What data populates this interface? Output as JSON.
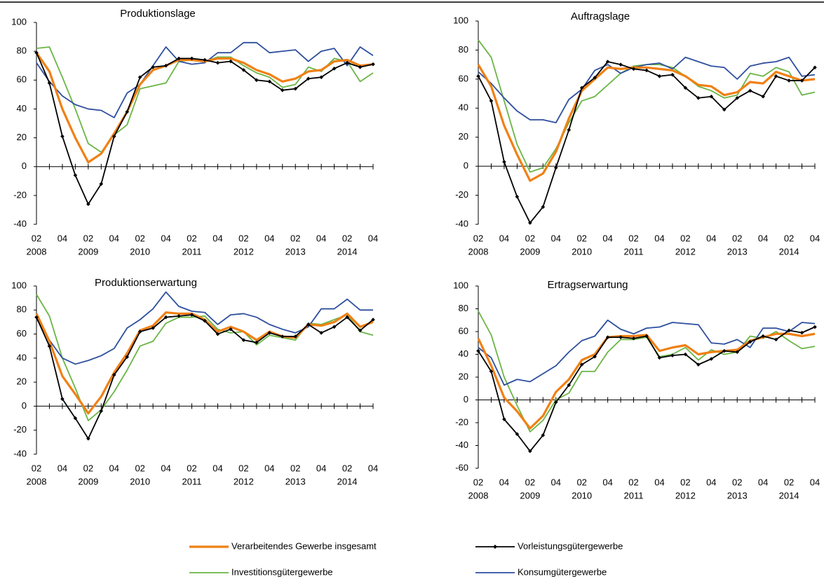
{
  "legend": [
    {
      "name": "Verarbeitendes Gewerbe insgesamt",
      "color": "#f08014"
    },
    {
      "name": "Vorleistungsgütergewerbe",
      "color": "#000000",
      "marker": "diamond"
    },
    {
      "name": "Investitionsgütergewerbe",
      "color": "#6ab545"
    },
    {
      "name": "Konsumgütergewerbe",
      "color": "#2e4f9e"
    }
  ],
  "chart_data": [
    {
      "type": "line",
      "title": "Produktionslage",
      "categories": [
        "02",
        null,
        "04",
        null,
        "02",
        null,
        "04",
        null,
        "02",
        null,
        "04",
        null,
        "02",
        null,
        "04",
        null,
        "02",
        null,
        "04",
        null,
        "02",
        null,
        "04",
        null,
        "02",
        null,
        "04"
      ],
      "years": [
        "2008",
        "2009",
        "2010",
        "2011",
        "2012",
        "2013",
        "2014"
      ],
      "ylim": [
        -40,
        100
      ],
      "yticks": [
        -40,
        -20,
        0,
        20,
        40,
        60,
        80,
        100
      ],
      "series": [
        {
          "values": [
            79,
            66,
            40,
            20,
            3,
            9,
            23,
            38,
            57,
            67,
            70,
            74,
            74,
            73,
            75,
            75,
            72,
            67,
            64,
            59,
            61,
            66,
            67,
            73,
            74,
            70,
            71
          ]
        },
        {
          "values": [
            79,
            58,
            21,
            -6,
            -26,
            -12,
            21,
            38,
            62,
            69,
            70,
            75,
            75,
            74,
            72,
            73,
            67,
            60,
            59,
            53,
            54,
            61,
            62,
            68,
            72,
            69,
            71
          ]
        },
        {
          "values": [
            82,
            83,
            62,
            40,
            16,
            10,
            22,
            29,
            54,
            56,
            58,
            73,
            74,
            73,
            76,
            76,
            70,
            65,
            62,
            55,
            57,
            69,
            66,
            75,
            73,
            59,
            65
          ]
        },
        {
          "values": [
            72,
            59,
            49,
            43,
            40,
            39,
            34,
            51,
            57,
            70,
            83,
            73,
            71,
            72,
            79,
            79,
            86,
            86,
            79,
            80,
            81,
            73,
            80,
            82,
            70,
            83,
            77
          ]
        }
      ]
    },
    {
      "type": "line",
      "title": "Auftragslage",
      "categories": [
        "02",
        null,
        "04",
        null,
        "02",
        null,
        "04",
        null,
        "02",
        null,
        "04",
        null,
        "02",
        null,
        "04",
        null,
        "02",
        null,
        "04",
        null,
        "02",
        null,
        "04",
        null,
        "02",
        null,
        "04"
      ],
      "years": [
        "2008",
        "2009",
        "2010",
        "2011",
        "2012",
        "2013",
        "2014"
      ],
      "ylim": [
        -40,
        100
      ],
      "yticks": [
        -40,
        -20,
        0,
        20,
        40,
        60,
        80,
        100
      ],
      "series": [
        {
          "values": [
            70,
            55,
            28,
            8,
            -10,
            -5,
            10,
            33,
            52,
            60,
            68,
            67,
            68,
            68,
            67,
            66,
            62,
            56,
            55,
            49,
            51,
            58,
            57,
            65,
            62,
            59,
            60
          ]
        },
        {
          "values": [
            62,
            45,
            3,
            -21,
            -39,
            -28,
            -1,
            25,
            54,
            61,
            72,
            70,
            67,
            66,
            62,
            63,
            54,
            47,
            48,
            39,
            47,
            52,
            48,
            62,
            59,
            59,
            68
          ]
        },
        {
          "values": [
            87,
            75,
            45,
            15,
            -4,
            -1,
            12,
            30,
            45,
            48,
            56,
            64,
            69,
            70,
            70,
            68,
            62,
            55,
            52,
            47,
            49,
            64,
            62,
            68,
            65,
            49,
            51
          ]
        },
        {
          "values": [
            65,
            57,
            47,
            38,
            32,
            32,
            30,
            46,
            53,
            66,
            70,
            64,
            68,
            70,
            71,
            67,
            75,
            72,
            69,
            68,
            60,
            69,
            71,
            72,
            75,
            62,
            63
          ]
        }
      ]
    },
    {
      "type": "line",
      "title": "Produktionserwartung",
      "categories": [
        "02",
        null,
        "04",
        null,
        "02",
        null,
        "04",
        null,
        "02",
        null,
        "04",
        null,
        "02",
        null,
        "04",
        null,
        "02",
        null,
        "04",
        null,
        "02",
        null,
        "04",
        null,
        "02",
        null,
        "04"
      ],
      "years": [
        "2008",
        "2009",
        "2010",
        "2011",
        "2012",
        "2013",
        "2014"
      ],
      "ylim": [
        -40,
        100
      ],
      "yticks": [
        -40,
        -20,
        0,
        20,
        40,
        60,
        80,
        100
      ],
      "series": [
        {
          "values": [
            77,
            54,
            25,
            10,
            -6,
            8,
            28,
            44,
            63,
            67,
            78,
            77,
            77,
            72,
            62,
            66,
            62,
            55,
            62,
            58,
            57,
            68,
            67,
            70,
            77,
            66,
            70
          ]
        },
        {
          "values": [
            74,
            50,
            6,
            -10,
            -27,
            -4,
            26,
            41,
            62,
            65,
            74,
            75,
            76,
            71,
            60,
            64,
            55,
            53,
            61,
            58,
            58,
            68,
            61,
            66,
            74,
            63,
            72
          ]
        },
        {
          "values": [
            93,
            75,
            40,
            15,
            -12,
            -3,
            12,
            30,
            50,
            54,
            69,
            74,
            74,
            75,
            64,
            61,
            62,
            51,
            59,
            57,
            55,
            69,
            68,
            72,
            76,
            62,
            59
          ]
        },
        {
          "values": [
            73,
            55,
            40,
            35,
            38,
            42,
            48,
            65,
            72,
            81,
            95,
            83,
            79,
            78,
            68,
            76,
            77,
            74,
            68,
            64,
            61,
            66,
            81,
            81,
            89,
            80,
            80
          ]
        }
      ]
    },
    {
      "type": "line",
      "title": "Ertragserwartung",
      "categories": [
        "02",
        null,
        "04",
        null,
        "02",
        null,
        "04",
        null,
        "02",
        null,
        "04",
        null,
        "02",
        null,
        "04",
        null,
        "02",
        null,
        "04",
        null,
        "02",
        null,
        "04",
        null,
        "02",
        null,
        "04"
      ],
      "years": [
        "2008",
        "2009",
        "2010",
        "2011",
        "2012",
        "2013",
        "2014"
      ],
      "ylim": [
        -60,
        100
      ],
      "yticks": [
        -60,
        -40,
        -20,
        0,
        20,
        40,
        60,
        80,
        100
      ],
      "series": [
        {
          "values": [
            54,
            30,
            2,
            -10,
            -25,
            -14,
            7,
            18,
            35,
            40,
            55,
            56,
            56,
            57,
            43,
            46,
            48,
            40,
            42,
            43,
            44,
            52,
            55,
            58,
            58,
            56,
            58
          ]
        },
        {
          "values": [
            43,
            25,
            -17,
            -30,
            -45,
            -31,
            -2,
            13,
            31,
            38,
            55,
            55,
            54,
            56,
            37,
            39,
            40,
            31,
            36,
            43,
            42,
            51,
            56,
            53,
            61,
            59,
            64
          ]
        },
        {
          "values": [
            78,
            57,
            20,
            -5,
            -28,
            -18,
            0,
            6,
            25,
            25,
            42,
            53,
            53,
            55,
            38,
            40,
            46,
            35,
            44,
            40,
            42,
            56,
            54,
            60,
            52,
            45,
            47
          ]
        },
        {
          "values": [
            46,
            37,
            13,
            18,
            16,
            23,
            30,
            42,
            52,
            56,
            70,
            62,
            58,
            63,
            64,
            68,
            67,
            66,
            50,
            49,
            53,
            46,
            63,
            63,
            60,
            68,
            67
          ]
        }
      ]
    }
  ]
}
